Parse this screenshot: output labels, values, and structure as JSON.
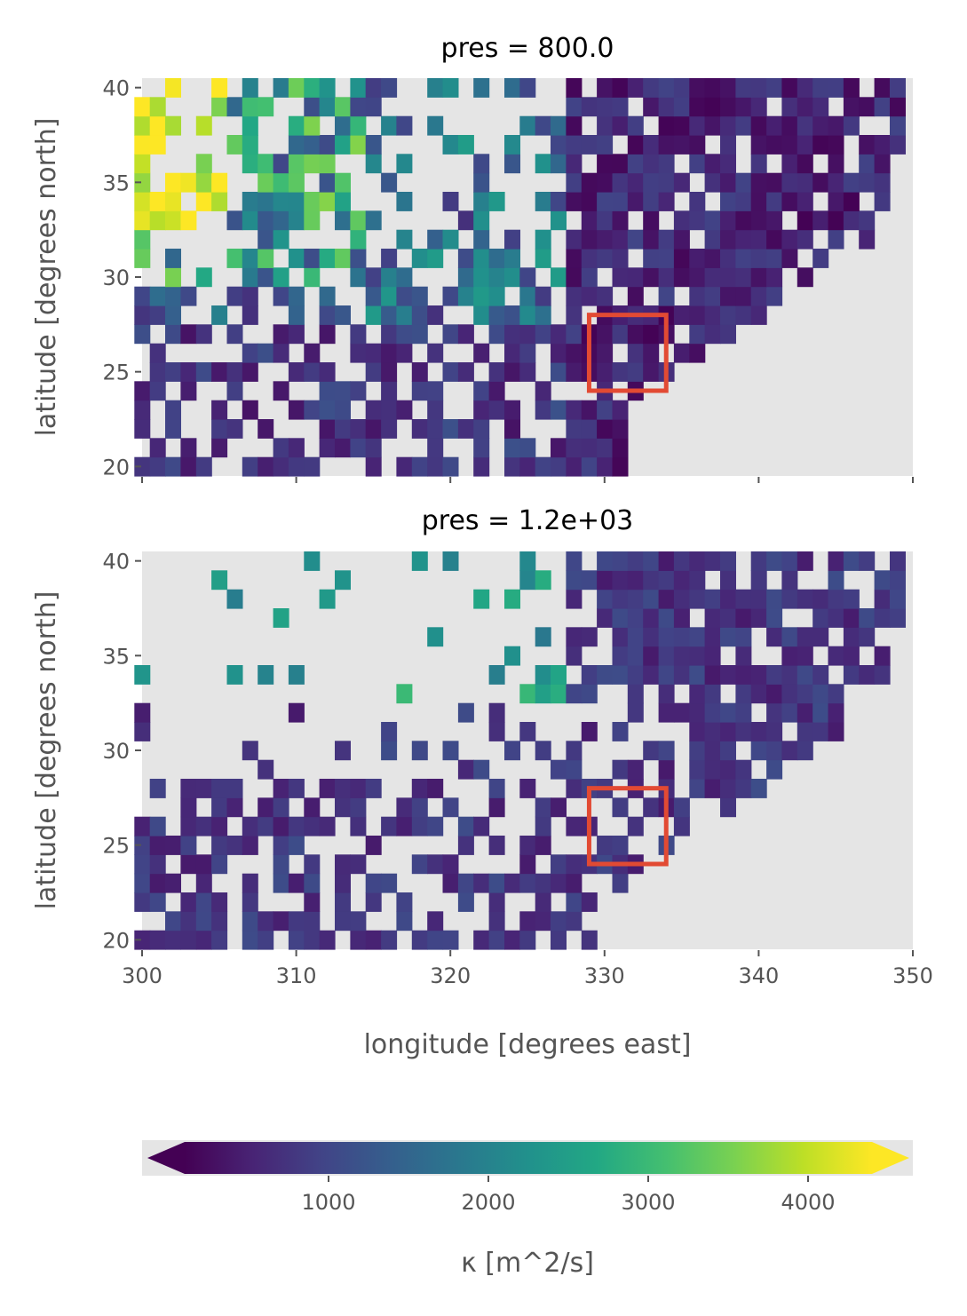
{
  "chart_data": [
    {
      "type": "heatmap",
      "title": "pres = 800.0",
      "xlabel": "",
      "ylabel": "latitude [degrees north]",
      "xlim": [
        300,
        350
      ],
      "ylim": [
        19.5,
        40.5
      ],
      "x_ticks": [
        300,
        310,
        320,
        330,
        340,
        350
      ],
      "x_tick_labels_shown": false,
      "y_ticks": [
        20,
        25,
        30,
        35,
        40
      ],
      "y_tick_labels": [
        "20",
        "25",
        "30",
        "35",
        "40"
      ],
      "grid_resolution_deg": 1,
      "region_box": {
        "lon": [
          329,
          334
        ],
        "lat": [
          24,
          28
        ]
      },
      "seed": 11
    },
    {
      "type": "heatmap",
      "title": "pres = 1.2e+03",
      "xlabel": "longitude [degrees east]",
      "ylabel": "latitude [degrees north]",
      "xlim": [
        300,
        350
      ],
      "ylim": [
        19.5,
        40.5
      ],
      "x_ticks": [
        300,
        310,
        320,
        330,
        340,
        350
      ],
      "x_tick_labels": [
        "300",
        "310",
        "320",
        "330",
        "340",
        "350"
      ],
      "y_ticks": [
        20,
        25,
        30,
        35,
        40
      ],
      "y_tick_labels": [
        "20",
        "25",
        "30",
        "35",
        "40"
      ],
      "grid_resolution_deg": 1,
      "region_box": {
        "lon": [
          329,
          334
        ],
        "lat": [
          24,
          28
        ]
      },
      "seed": 29
    }
  ],
  "colorbar": {
    "label": "κ [m^2/s]",
    "range": [
      100,
      4400
    ],
    "ticks": [
      1000,
      2000,
      3000,
      4000
    ],
    "tick_labels": [
      "1000",
      "2000",
      "3000",
      "4000"
    ],
    "colormap": "viridis",
    "extend": "both"
  },
  "colors": {
    "background": "#e5e5e5",
    "box": "#e24a33",
    "tick_text": "#555555",
    "title_text": "#000000"
  }
}
